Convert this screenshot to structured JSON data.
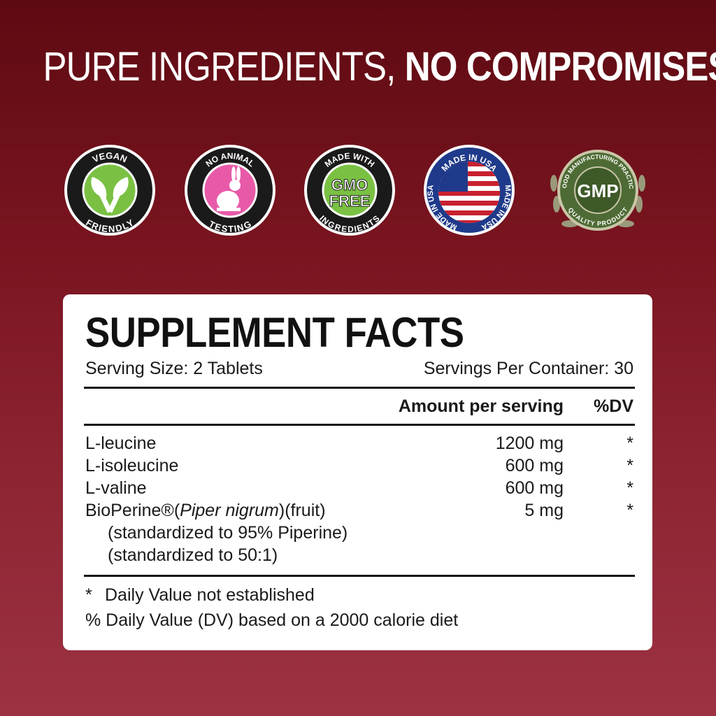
{
  "headline": {
    "light": "PURE INGREDIENTS, ",
    "bold": "NO COMPROMISES"
  },
  "badges": [
    {
      "icon": "vegan-leaf-icon",
      "top": "VEGAN",
      "bottom": "FRIENDLY",
      "color": "#7ac143"
    },
    {
      "icon": "rabbit-icon",
      "top": "NO ANIMAL",
      "bottom": "TESTING",
      "color": "#e85aa8"
    },
    {
      "icon": "gmo-free-icon",
      "top": "MADE WITH",
      "center1": "GMO",
      "center2": "FREE",
      "bottom": "INGREDIENTS",
      "color": "#7ac143"
    },
    {
      "icon": "us-flag-icon",
      "top": "MADE IN USA",
      "left": "MADE IN USA",
      "right": "MADE IN USA",
      "color": "#1f3a8a"
    },
    {
      "icon": "gmp-laurel-icon",
      "top": "GOOD MANUFACTURING PRACTICE",
      "center": "GMP",
      "bottom": "QUALITY PRODUCT",
      "color": "#4e6b35"
    }
  ],
  "facts": {
    "title": "SUPPLEMENT FACTS",
    "serving_size": "Serving Size: 2 Tablets",
    "servings_per_container": "Servings Per Container: 30",
    "col_amount": "Amount per serving",
    "col_dv": "%DV",
    "rows": [
      {
        "name": "L-leucine",
        "amount": "1200 mg",
        "dv": "*"
      },
      {
        "name": "L-isoleucine",
        "amount": "600 mg",
        "dv": "*"
      },
      {
        "name": "L-valine",
        "amount": "600 mg",
        "dv": "*"
      },
      {
        "name": "BioPerine®(",
        "name_italic": "Piper nigrum",
        "name_end": ")(fruit)",
        "amount": "5 mg",
        "dv": "*"
      }
    ],
    "sub1": "(standardized to 95% Piperine)",
    "sub2": "(standardized to 50:1)",
    "foot1_star": "*",
    "foot1": "Daily Value not established",
    "foot2": "% Daily Value (DV) based on a 2000 calorie diet"
  }
}
